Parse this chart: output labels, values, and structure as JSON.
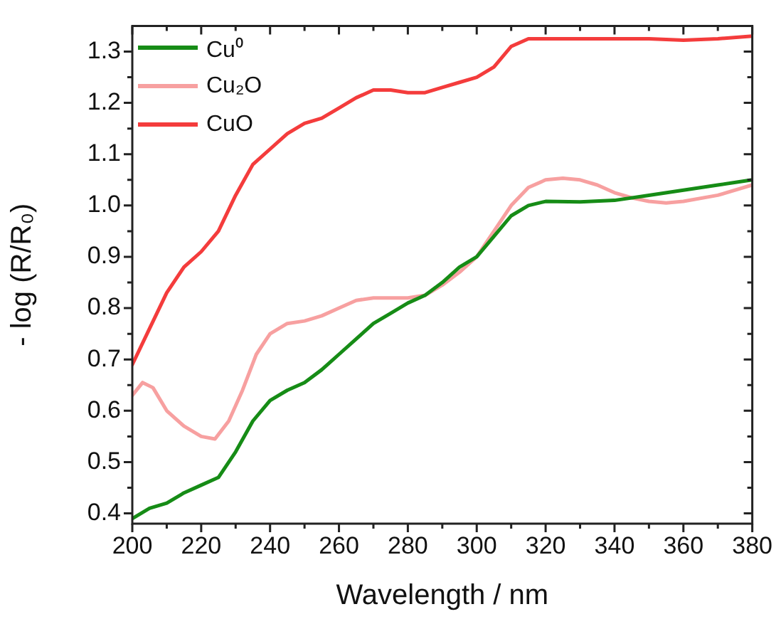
{
  "chart_data": {
    "type": "line",
    "xlabel": "Wavelength / nm",
    "ylabel": "- log (R/R₀)",
    "xlim": [
      200,
      380
    ],
    "xticks": [
      200,
      220,
      240,
      260,
      280,
      300,
      320,
      340,
      360,
      380
    ],
    "ylim": [
      0.38,
      1.35
    ],
    "yticks": [
      0.4,
      0.5,
      0.6,
      0.7,
      0.8,
      0.9,
      {
        "value": 1,
        "label": "1.0"
      },
      1.1,
      1.2,
      1.3
    ],
    "grid": false,
    "legend": "top left",
    "marker": "none",
    "line_style": "solid",
    "series": [
      {
        "name": "Cu⁰",
        "color": "#168c16",
        "x": [
          200,
          205,
          210,
          215,
          220,
          225,
          230,
          235,
          240,
          245,
          250,
          255,
          260,
          265,
          270,
          275,
          280,
          285,
          290,
          295,
          300,
          305,
          310,
          315,
          320,
          330,
          340,
          350,
          360,
          370,
          380
        ],
        "values": [
          0.39,
          0.41,
          0.42,
          0.44,
          0.455,
          0.47,
          0.52,
          0.58,
          0.62,
          0.64,
          0.655,
          0.68,
          0.71,
          0.74,
          0.77,
          0.79,
          0.81,
          0.825,
          0.85,
          0.88,
          0.9,
          0.94,
          0.98,
          1.0,
          1.008,
          1.007,
          1.01,
          1.02,
          1.03,
          1.04,
          1.05
        ]
      },
      {
        "name": "Cu₂O",
        "color": "#f7a0a0",
        "x": [
          200,
          203,
          206,
          210,
          215,
          220,
          224,
          228,
          232,
          236,
          240,
          245,
          250,
          255,
          260,
          265,
          270,
          275,
          280,
          285,
          290,
          295,
          300,
          305,
          310,
          315,
          320,
          325,
          330,
          335,
          340,
          345,
          350,
          355,
          360,
          370,
          380
        ],
        "values": [
          0.63,
          0.655,
          0.645,
          0.6,
          0.57,
          0.55,
          0.545,
          0.58,
          0.64,
          0.71,
          0.75,
          0.77,
          0.775,
          0.785,
          0.8,
          0.815,
          0.82,
          0.82,
          0.82,
          0.825,
          0.845,
          0.87,
          0.9,
          0.95,
          1.0,
          1.035,
          1.05,
          1.053,
          1.05,
          1.04,
          1.025,
          1.015,
          1.008,
          1.005,
          1.008,
          1.02,
          1.04
        ]
      },
      {
        "name": "CuO",
        "color": "#f43c3c",
        "x": [
          200,
          205,
          210,
          215,
          220,
          225,
          230,
          235,
          240,
          245,
          250,
          255,
          260,
          265,
          270,
          275,
          280,
          285,
          290,
          295,
          300,
          305,
          310,
          315,
          320,
          330,
          340,
          350,
          360,
          370,
          380
        ],
        "values": [
          0.69,
          0.76,
          0.83,
          0.88,
          0.91,
          0.95,
          1.02,
          1.08,
          1.11,
          1.14,
          1.16,
          1.17,
          1.19,
          1.21,
          1.225,
          1.225,
          1.22,
          1.22,
          1.23,
          1.24,
          1.25,
          1.27,
          1.31,
          1.325,
          1.325,
          1.325,
          1.325,
          1.325,
          1.322,
          1.325,
          1.33
        ]
      }
    ]
  }
}
